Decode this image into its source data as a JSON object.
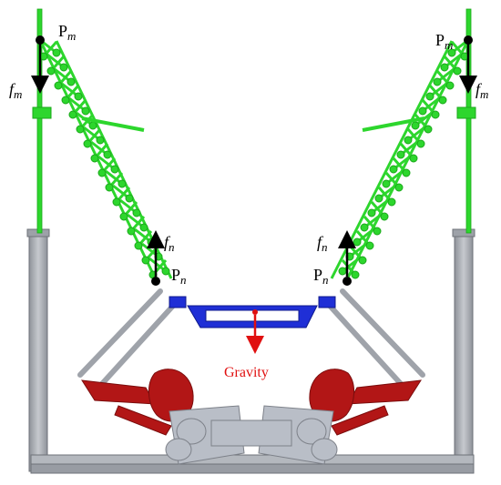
{
  "labels": {
    "pm_left": {
      "main": "P",
      "sub": "m"
    },
    "pm_right": {
      "main": "P",
      "sub": "m"
    },
    "fm_left": {
      "main": "f",
      "sub": "m"
    },
    "fm_right": {
      "main": "f",
      "sub": "m"
    },
    "fn_left": {
      "main": "f",
      "sub": "n"
    },
    "fn_right": {
      "main": "f",
      "sub": "n"
    },
    "pn_left": {
      "main": "P",
      "sub": "n"
    },
    "pn_right": {
      "main": "P",
      "sub": "n"
    },
    "gravity": "Gravity"
  },
  "colors": {
    "spring": "#2dd62d",
    "spring_dark": "#1aa81a",
    "platform": "#1f2fd6",
    "frame": "#a7abb2",
    "frame_dark": "#7d8189",
    "leg": "#b21616",
    "body": "#b9bec7",
    "arrow_black": "#000000",
    "gravity": "#e01010"
  }
}
